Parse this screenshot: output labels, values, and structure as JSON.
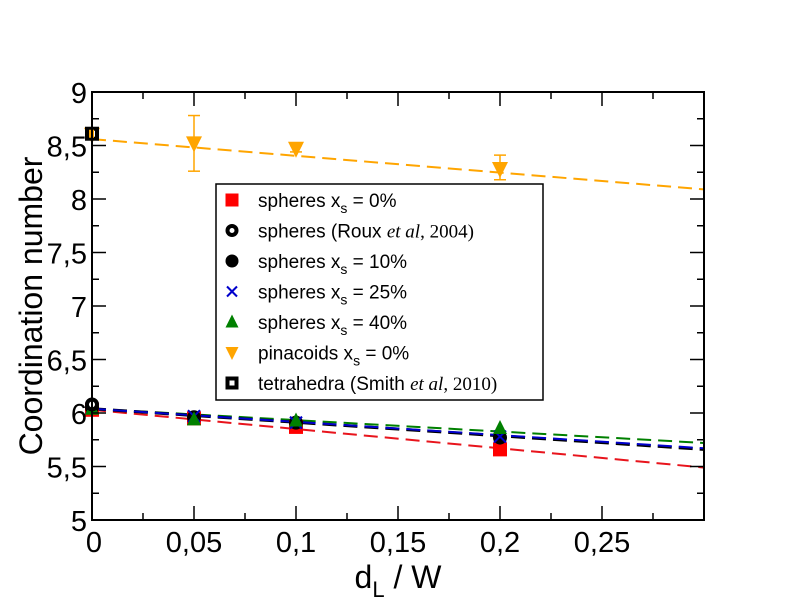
{
  "chart_data": {
    "type": "scatter",
    "title": "",
    "xlabel": "d",
    "xlabel_sub": "L",
    "xlabel_suffix": " / W",
    "ylabel": "Coordination number",
    "xlim": [
      0,
      0.3
    ],
    "ylim": [
      5,
      9
    ],
    "x_ticks": [
      0,
      0.05,
      0.1,
      0.15,
      0.2,
      0.25
    ],
    "x_tick_labels": [
      "0",
      "0,05",
      "0,1",
      "0,15",
      "0,2",
      "0,25"
    ],
    "x_minor_step": 0.025,
    "y_ticks": [
      5,
      5.5,
      6,
      6.5,
      7,
      7.5,
      8,
      8.5,
      9
    ],
    "y_tick_labels": [
      "5",
      "5,5",
      "6",
      "6,5",
      "7",
      "7,5",
      "8",
      "8,5",
      "9"
    ],
    "y_minor_step": 0.25,
    "grid": false,
    "legend_position": "center",
    "series": [
      {
        "name": "spheres xs = 0%",
        "legend": {
          "pre": "spheres x",
          "sub": "s",
          "post": " = 0%"
        },
        "marker": "square",
        "color": "#ff0000",
        "x": [
          0,
          0.05,
          0.1,
          0.2
        ],
        "y": [
          6.03,
          5.95,
          5.87,
          5.66
        ],
        "fit": {
          "color": "#e8141c",
          "y0": 6.03,
          "y_end": 5.49
        }
      },
      {
        "name": "spheres (Roux et al, 2004)",
        "legend": {
          "pre": "spheres (Roux ",
          "italic": "et al",
          "serif": ", 2004)"
        },
        "marker": "open-circle",
        "color": "#000000",
        "x": [
          0
        ],
        "y": [
          6.08
        ]
      },
      {
        "name": "spheres xs = 10%",
        "legend": {
          "pre": "spheres x",
          "sub": "s",
          "post": " = 10%"
        },
        "marker": "circle",
        "color": "#000000",
        "x": [
          0,
          0.05,
          0.1,
          0.2
        ],
        "y": [
          6.05,
          5.96,
          5.91,
          5.77
        ],
        "fit": {
          "color": "#000000",
          "y0": 6.04,
          "y_end": 5.66
        }
      },
      {
        "name": "spheres xs = 25%",
        "legend": {
          "pre": "spheres x",
          "sub": "s",
          "post": " = 25%"
        },
        "marker": "x",
        "color": "#0000cc",
        "x": [
          0,
          0.05,
          0.1,
          0.2
        ],
        "y": [
          6.05,
          5.97,
          5.91,
          5.78
        ],
        "fit": {
          "color": "#0000cc",
          "y0": 6.04,
          "y_end": 5.67
        }
      },
      {
        "name": "spheres xs = 40%",
        "legend": {
          "pre": "spheres x",
          "sub": "s",
          "post": " = 40%"
        },
        "marker": "triangle-up",
        "color": "#008000",
        "x": [
          0,
          0.05,
          0.1,
          0.2
        ],
        "y": [
          6.04,
          5.94,
          5.93,
          5.86
        ],
        "fit": {
          "color": "#008000",
          "y0": 6.04,
          "y_end": 5.72
        }
      },
      {
        "name": "pinacoids xs = 0%",
        "legend": {
          "pre": "pinacoids x",
          "sub": "s",
          "post": " = 0%"
        },
        "marker": "triangle-down",
        "color": "#ffa500",
        "x": [
          0,
          0.05,
          0.1,
          0.2
        ],
        "y": [
          8.6,
          8.52,
          8.47,
          8.28
        ],
        "yerr_low": [
          0,
          8.26,
          8.44,
          8.18
        ],
        "yerr_high": [
          0,
          8.78,
          8.5,
          8.41
        ],
        "fit": {
          "color": "#ffa500",
          "y0": 8.56,
          "y_end": 8.09
        }
      },
      {
        "name": "tetrahedra (Smith et al, 2010)",
        "legend": {
          "pre": "tetrahedra (Smith ",
          "italic": "et al",
          "serif": ", 2010)"
        },
        "marker": "open-square",
        "color": "#000000",
        "x": [
          0
        ],
        "y": [
          8.61
        ]
      }
    ]
  }
}
